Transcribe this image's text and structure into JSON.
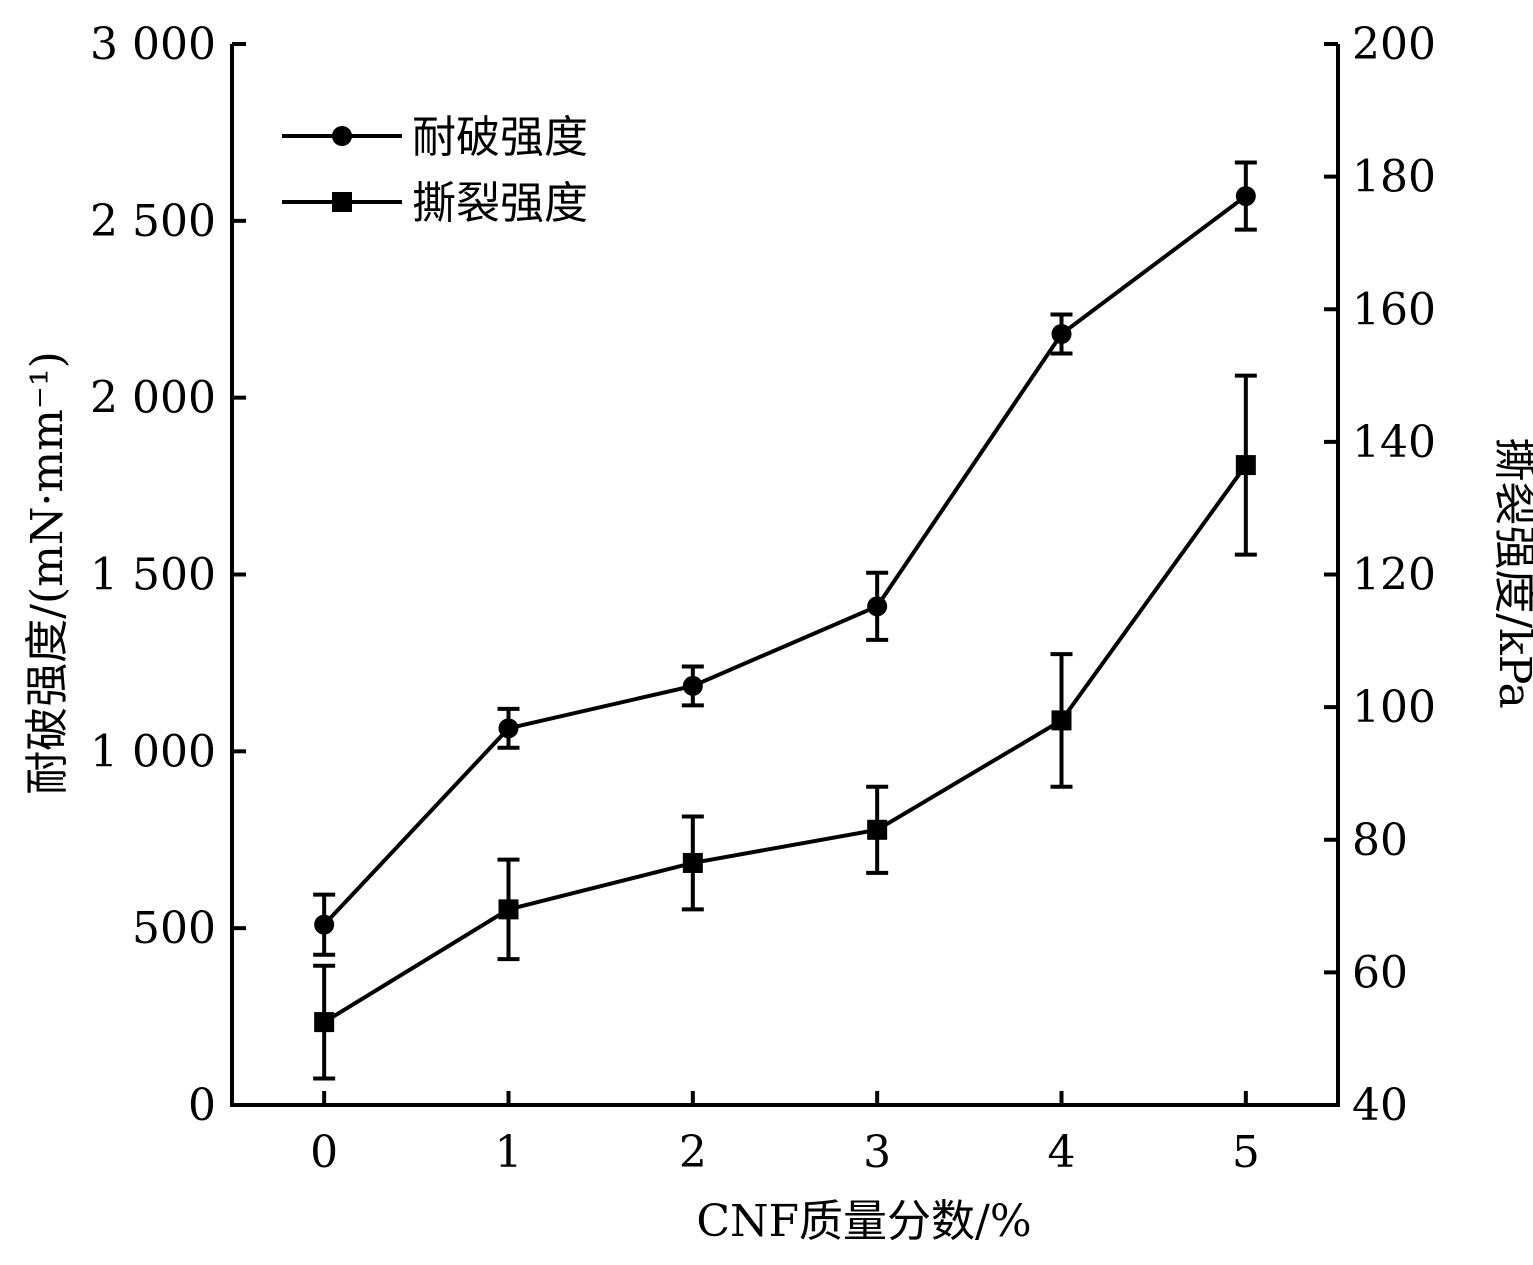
{
  "chart_data": {
    "type": "line",
    "xlabel": "CNF质量分数/%",
    "ylabel_left": "耐破强度/(mN·mm⁻¹)",
    "ylabel_right": "撕裂强度/kPa",
    "x": [
      0,
      1,
      2,
      3,
      4,
      5
    ],
    "xlim": [
      -0.5,
      5.5
    ],
    "ylim_left": [
      0,
      3000
    ],
    "ylim_right": [
      40,
      200
    ],
    "x_tick_labels": [
      "0",
      "1",
      "2",
      "3",
      "4",
      "5"
    ],
    "y_left_ticks": [
      0,
      500,
      1000,
      1500,
      2000,
      2500,
      3000
    ],
    "y_left_tick_labels": [
      "0",
      "500",
      "1 000",
      "1 500",
      "2 000",
      "2 500",
      "3 000"
    ],
    "y_right_ticks": [
      40,
      60,
      80,
      100,
      120,
      140,
      160,
      180,
      200
    ],
    "y_right_tick_labels": [
      "40",
      "60",
      "80",
      "100",
      "120",
      "140",
      "160",
      "180",
      "200"
    ],
    "legend_position": "top-left",
    "grid": false,
    "series": [
      {
        "name": "耐破强度",
        "axis": "left",
        "marker": "circle",
        "color": "#000000",
        "values": [
          510,
          1065,
          1185,
          1410,
          2180,
          2570
        ],
        "errors": [
          85,
          55,
          55,
          95,
          55,
          95
        ]
      },
      {
        "name": "撕裂强度",
        "axis": "right",
        "marker": "square",
        "color": "#000000",
        "values": [
          52.5,
          69.5,
          76.5,
          81.5,
          98.0,
          136.5
        ],
        "errors": [
          8.5,
          7.5,
          7.0,
          6.5,
          10.0,
          13.5
        ]
      }
    ]
  }
}
